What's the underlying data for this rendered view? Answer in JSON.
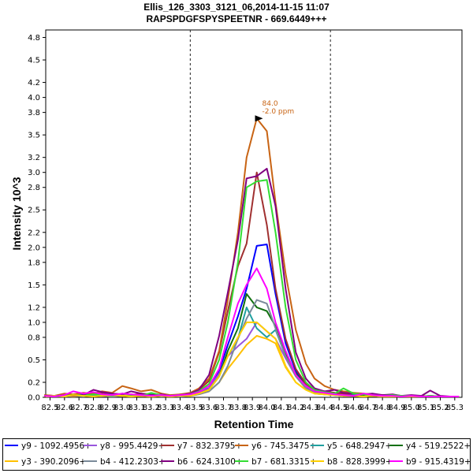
{
  "title_line1": "Ellis_126_3303_3121_06,2014-11-15 11:07",
  "title_line2": "RAPSPDGFSPYSPEETNR - 669.6449+++",
  "chart_data": {
    "type": "line",
    "xlabel": "Retention Time",
    "ylabel": "Intensity 10^3",
    "xlim": [
      82.47,
      85.35
    ],
    "ylim": [
      0,
      4.9
    ],
    "x_ticks": [
      "82.5",
      "82.6",
      "82.7",
      "82.8",
      "82.9",
      "83.0",
      "83.1",
      "83.2",
      "83.3",
      "83.4",
      "83.5",
      "83.6",
      "83.7",
      "83.8",
      "83.9",
      "84.0",
      "84.1",
      "84.2",
      "84.3",
      "84.4",
      "84.5",
      "84.6",
      "84.7",
      "84.8",
      "84.9",
      "85.0",
      "85.1",
      "85.2",
      "85.3"
    ],
    "y_ticks": [
      "0.0",
      "0.2",
      "0.5",
      "0.8",
      "1.0",
      "1.2",
      "1.5",
      "1.8",
      "2.0",
      "2.2",
      "2.5",
      "2.8",
      "3.0",
      "3.2",
      "3.5",
      "3.8",
      "4.0",
      "4.2",
      "4.5",
      "4.8"
    ],
    "integration_boundaries": [
      83.47,
      84.44
    ],
    "peak_annotation": {
      "x": 84.0,
      "y": 3.72,
      "label1": "84.0",
      "label2": "-2.0 ppm",
      "color": "#c86414"
    },
    "x": [
      82.46,
      82.53,
      82.6,
      82.66,
      82.73,
      82.8,
      82.86,
      82.93,
      83.0,
      83.06,
      83.13,
      83.2,
      83.27,
      83.33,
      83.4,
      83.47,
      83.53,
      83.6,
      83.67,
      83.73,
      83.8,
      83.86,
      83.93,
      84.0,
      84.06,
      84.13,
      84.2,
      84.27,
      84.33,
      84.4,
      84.47,
      84.53,
      84.6,
      84.67,
      84.73,
      84.8,
      84.87,
      84.93,
      85.0,
      85.07,
      85.13,
      85.2,
      85.27,
      85.33
    ],
    "series": [
      {
        "name": "y9 - 1092.4956+",
        "color": "#0000ff",
        "values": [
          0.02,
          0.01,
          0.02,
          0.01,
          0.03,
          0.02,
          0.04,
          0.02,
          0.05,
          0.03,
          0.04,
          0.02,
          0.03,
          0.02,
          0.03,
          0.04,
          0.08,
          0.12,
          0.35,
          0.7,
          1.08,
          1.45,
          2.02,
          2.04,
          1.38,
          0.72,
          0.35,
          0.18,
          0.1,
          0.07,
          0.05,
          0.04,
          0.03,
          0.02,
          0.03,
          0.02,
          0.02,
          0.01,
          0.02,
          0.01,
          0.02,
          0.01,
          0.01,
          0.01
        ]
      },
      {
        "name": "y8 - 995.4429+",
        "color": "#9955dd",
        "values": [
          0.01,
          0.02,
          0.01,
          0.03,
          0.02,
          0.04,
          0.02,
          0.03,
          0.02,
          0.04,
          0.03,
          0.02,
          0.03,
          0.02,
          0.02,
          0.03,
          0.06,
          0.12,
          0.32,
          0.55,
          0.68,
          0.78,
          1.0,
          0.88,
          0.78,
          0.52,
          0.28,
          0.12,
          0.06,
          0.05,
          0.04,
          0.03,
          0.02,
          0.03,
          0.02,
          0.02,
          0.01,
          0.02,
          0.01,
          0.02,
          0.01,
          0.01,
          0.01,
          0.01
        ]
      },
      {
        "name": "y7 - 832.3795+",
        "color": "#a03030",
        "values": [
          0.03,
          0.02,
          0.04,
          0.03,
          0.05,
          0.04,
          0.06,
          0.05,
          0.04,
          0.03,
          0.05,
          0.04,
          0.03,
          0.02,
          0.04,
          0.05,
          0.1,
          0.22,
          0.6,
          1.15,
          1.75,
          2.05,
          3.0,
          2.3,
          1.45,
          0.78,
          0.38,
          0.18,
          0.1,
          0.08,
          0.06,
          0.05,
          0.04,
          0.03,
          0.03,
          0.02,
          0.03,
          0.02,
          0.02,
          0.01,
          0.02,
          0.01,
          0.01,
          0.01
        ]
      },
      {
        "name": "y6 - 745.3475+",
        "color": "#c86414",
        "values": [
          0.03,
          0.02,
          0.05,
          0.04,
          0.06,
          0.05,
          0.08,
          0.06,
          0.15,
          0.12,
          0.08,
          0.1,
          0.05,
          0.03,
          0.04,
          0.06,
          0.12,
          0.25,
          0.62,
          1.3,
          2.2,
          3.2,
          3.72,
          3.55,
          2.6,
          1.65,
          0.9,
          0.45,
          0.25,
          0.15,
          0.1,
          0.08,
          0.06,
          0.05,
          0.04,
          0.03,
          0.03,
          0.02,
          0.02,
          0.02,
          0.01,
          0.01,
          0.01,
          0.01
        ]
      },
      {
        "name": "y5 - 648.2947+",
        "color": "#20a0a0",
        "values": [
          0.02,
          0.01,
          0.03,
          0.02,
          0.04,
          0.02,
          0.03,
          0.04,
          0.02,
          0.03,
          0.02,
          0.04,
          0.03,
          0.02,
          0.03,
          0.02,
          0.05,
          0.1,
          0.28,
          0.55,
          0.78,
          1.2,
          0.92,
          0.8,
          0.9,
          0.55,
          0.3,
          0.15,
          0.05,
          0.04,
          0.03,
          0.02,
          0.03,
          0.02,
          0.02,
          0.01,
          0.02,
          0.01,
          0.02,
          0.01,
          0.01,
          0.01,
          0.01,
          0.01
        ]
      },
      {
        "name": "y4 - 519.2522+",
        "color": "#107010",
        "values": [
          0.01,
          0.02,
          0.01,
          0.02,
          0.03,
          0.02,
          0.04,
          0.02,
          0.03,
          0.02,
          0.03,
          0.02,
          0.02,
          0.01,
          0.02,
          0.03,
          0.05,
          0.1,
          0.28,
          0.62,
          0.92,
          1.38,
          1.2,
          1.15,
          0.95,
          0.58,
          0.32,
          0.15,
          0.08,
          0.06,
          0.04,
          0.03,
          0.02,
          0.02,
          0.02,
          0.01,
          0.02,
          0.01,
          0.01,
          0.01,
          0.01,
          0.01,
          0.01,
          0.01
        ]
      },
      {
        "name": "y3 - 390.2096+",
        "color": "#ffc000",
        "values": [
          0.01,
          0.01,
          0.02,
          0.01,
          0.02,
          0.03,
          0.02,
          0.01,
          0.02,
          0.03,
          0.02,
          0.01,
          0.02,
          0.01,
          0.02,
          0.02,
          0.04,
          0.08,
          0.2,
          0.38,
          0.55,
          0.7,
          0.82,
          0.78,
          0.72,
          0.4,
          0.2,
          0.1,
          0.05,
          0.04,
          0.03,
          0.02,
          0.02,
          0.01,
          0.02,
          0.01,
          0.01,
          0.01,
          0.01,
          0.01,
          0.01,
          0.01,
          0.01,
          0.01
        ]
      },
      {
        "name": "b4 - 412.2303+",
        "color": "#7a8a9a",
        "values": [
          0.01,
          0.02,
          0.01,
          0.02,
          0.01,
          0.03,
          0.02,
          0.01,
          0.02,
          0.01,
          0.02,
          0.03,
          0.01,
          0.02,
          0.01,
          0.02,
          0.04,
          0.08,
          0.2,
          0.42,
          0.78,
          1.05,
          1.3,
          1.25,
          0.92,
          0.55,
          0.28,
          0.12,
          0.06,
          0.04,
          0.03,
          0.02,
          0.02,
          0.01,
          0.02,
          0.01,
          0.01,
          0.01,
          0.01,
          0.01,
          0.01,
          0.01,
          0.01,
          0.01
        ]
      },
      {
        "name": "b6 - 624.3100+",
        "color": "#800080",
        "values": [
          0.02,
          0.01,
          0.03,
          0.02,
          0.03,
          0.1,
          0.07,
          0.05,
          0.04,
          0.08,
          0.05,
          0.03,
          0.04,
          0.02,
          0.03,
          0.05,
          0.1,
          0.3,
          0.82,
          1.4,
          2.1,
          2.92,
          2.95,
          3.05,
          2.55,
          1.45,
          0.6,
          0.25,
          0.12,
          0.08,
          0.1,
          0.06,
          0.05,
          0.04,
          0.05,
          0.03,
          0.04,
          0.02,
          0.03,
          0.02,
          0.09,
          0.02,
          0.01,
          0.01
        ]
      },
      {
        "name": "b7 - 681.3315+",
        "color": "#33dd33",
        "values": [
          0.02,
          0.01,
          0.02,
          0.03,
          0.02,
          0.04,
          0.03,
          0.02,
          0.05,
          0.03,
          0.02,
          0.06,
          0.03,
          0.02,
          0.03,
          0.04,
          0.08,
          0.18,
          0.5,
          1.0,
          1.8,
          2.8,
          2.88,
          2.9,
          2.2,
          1.2,
          0.5,
          0.2,
          0.1,
          0.07,
          0.05,
          0.12,
          0.05,
          0.04,
          0.03,
          0.02,
          0.03,
          0.02,
          0.02,
          0.01,
          0.02,
          0.01,
          0.01,
          0.01
        ]
      },
      {
        "name": "b8 - 828.3999+",
        "color": "#ffd000",
        "values": [
          0.01,
          0.02,
          0.01,
          0.03,
          0.02,
          0.01,
          0.02,
          0.03,
          0.02,
          0.01,
          0.02,
          0.01,
          0.02,
          0.01,
          0.02,
          0.02,
          0.05,
          0.1,
          0.28,
          0.55,
          0.8,
          1.0,
          1.0,
          0.88,
          0.78,
          0.42,
          0.2,
          0.1,
          0.05,
          0.04,
          0.03,
          0.02,
          0.02,
          0.01,
          0.02,
          0.01,
          0.01,
          0.01,
          0.01,
          0.01,
          0.01,
          0.01,
          0.01,
          0.01
        ]
      },
      {
        "name": "b9 - 915.4319+",
        "color": "#ff00ff",
        "values": [
          0.02,
          0.01,
          0.03,
          0.08,
          0.05,
          0.07,
          0.04,
          0.03,
          0.05,
          0.04,
          0.03,
          0.02,
          0.03,
          0.02,
          0.03,
          0.04,
          0.07,
          0.15,
          0.38,
          0.8,
          1.25,
          1.5,
          1.72,
          1.45,
          1.0,
          0.62,
          0.3,
          0.15,
          0.08,
          0.06,
          0.04,
          0.03,
          0.02,
          0.05,
          0.03,
          0.02,
          0.02,
          0.01,
          0.02,
          0.01,
          0.01,
          0.01,
          0.01,
          0.01
        ]
      }
    ]
  }
}
